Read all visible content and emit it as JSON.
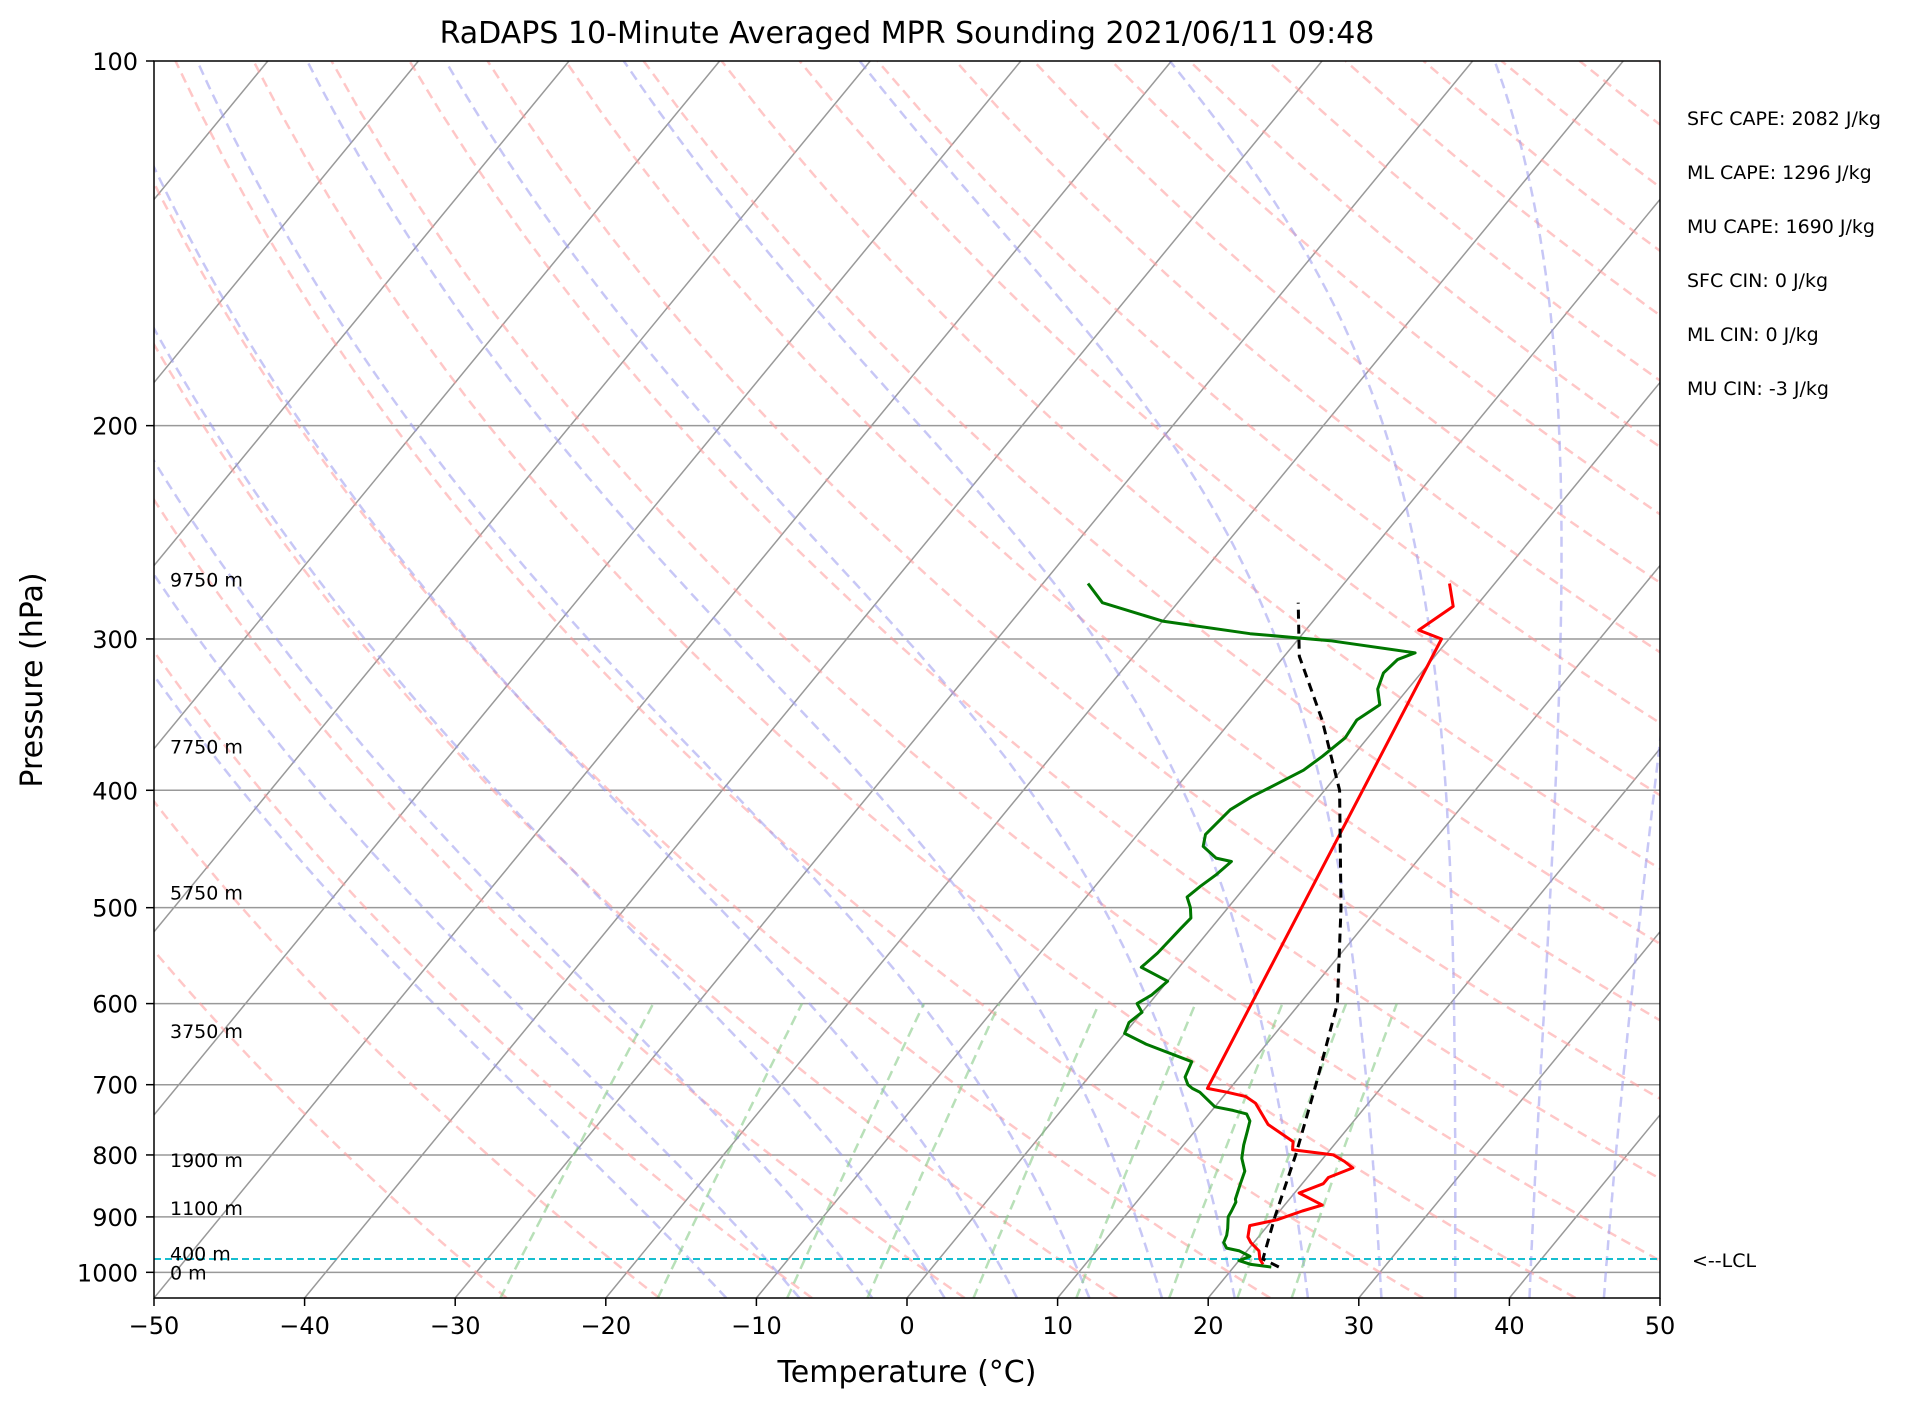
{
  "chart_data": {
    "type": "skew-t",
    "title": "RaDAPS 10-Minute Averaged MPR Sounding 2021/06/11 09:48",
    "xlabel": "Temperature (°C)",
    "ylabel": "Pressure (hPa)",
    "xlim": [
      -50,
      50
    ],
    "ylim": [
      1050,
      100
    ],
    "y_scale": "log",
    "grid": true,
    "x_ticks": [
      "−50",
      "−40",
      "−30",
      "−20",
      "−10",
      "0",
      "10",
      "20",
      "30",
      "40",
      "50"
    ],
    "y_ticks": [
      "100",
      "200",
      "300",
      "400",
      "500",
      "600",
      "700",
      "800",
      "900",
      "1000"
    ],
    "height_labels": [
      {
        "text": "0 m",
        "p": 1000
      },
      {
        "text": "400 m",
        "p": 965
      },
      {
        "text": "1100 m",
        "p": 885
      },
      {
        "text": "1900 m",
        "p": 808
      },
      {
        "text": "3750 m",
        "p": 632
      },
      {
        "text": "5750 m",
        "p": 486
      },
      {
        "text": "7750 m",
        "p": 368
      },
      {
        "text": "9750 m",
        "p": 268
      }
    ],
    "lcl": {
      "p": 975,
      "label": "<--LCL"
    },
    "series": [
      {
        "color": "#ff0000",
        "points": [
          [
            21.8,
            985
          ],
          [
            21.3,
            975
          ],
          [
            20.8,
            960
          ],
          [
            19.8,
            945
          ],
          [
            19.3,
            935
          ],
          [
            18.8,
            915
          ],
          [
            20.3,
            905
          ],
          [
            21.5,
            890
          ],
          [
            22.5,
            880
          ],
          [
            21.2,
            868
          ],
          [
            20.3,
            860
          ],
          [
            21.4,
            845
          ],
          [
            21.4,
            835
          ],
          [
            22.5,
            820
          ],
          [
            21.6,
            810
          ],
          [
            20.5,
            800
          ],
          [
            17.5,
            792
          ],
          [
            17.1,
            780
          ],
          [
            14.5,
            755
          ],
          [
            12.5,
            725
          ],
          [
            11.5,
            716
          ],
          [
            10.0,
            710
          ],
          [
            8.5,
            705
          ],
          [
            -0.5,
            300
          ],
          [
            -2.5,
            295
          ],
          [
            -1.5,
            282
          ],
          [
            -3.0,
            270
          ]
        ]
      },
      {
        "color": "#007700",
        "points": [
          [
            22.5,
            990
          ],
          [
            21.0,
            985
          ],
          [
            20.0,
            978
          ],
          [
            20.5,
            970
          ],
          [
            19.5,
            960
          ],
          [
            18.5,
            955
          ],
          [
            18.0,
            945
          ],
          [
            17.8,
            932
          ],
          [
            17.5,
            920
          ],
          [
            16.9,
            900
          ],
          [
            16.8,
            890
          ],
          [
            16.6,
            875
          ],
          [
            16.4,
            870
          ],
          [
            16.1,
            855
          ],
          [
            15.9,
            845
          ],
          [
            15.5,
            825
          ],
          [
            14.6,
            805
          ],
          [
            14.0,
            785
          ],
          [
            13.5,
            765
          ],
          [
            13.1,
            750
          ],
          [
            12.5,
            740
          ],
          [
            11.4,
            735
          ],
          [
            10.0,
            730
          ],
          [
            8.2,
            710
          ],
          [
            7.5,
            705
          ],
          [
            7.0,
            700
          ],
          [
            6.4,
            690
          ],
          [
            6.0,
            670
          ],
          [
            2.0,
            648
          ],
          [
            0.0,
            635
          ],
          [
            -0.3,
            622
          ],
          [
            0.0,
            610
          ],
          [
            -0.8,
            600
          ],
          [
            -0.3,
            590
          ],
          [
            0.0,
            575
          ],
          [
            -2.5,
            560
          ],
          [
            -2.2,
            545
          ],
          [
            -2.0,
            520
          ],
          [
            -1.9,
            510
          ],
          [
            -2.5,
            500
          ],
          [
            -3.3,
            490
          ],
          [
            -3.0,
            480
          ],
          [
            -2.6,
            470
          ],
          [
            -2.3,
            458
          ],
          [
            -3.5,
            455
          ],
          [
            -5.0,
            445
          ],
          [
            -5.5,
            435
          ],
          [
            -5.2,
            415
          ],
          [
            -4.5,
            405
          ],
          [
            -3.5,
            395
          ],
          [
            -2.5,
            385
          ],
          [
            -2.0,
            375
          ],
          [
            -1.5,
            362
          ],
          [
            -1.7,
            350
          ],
          [
            -1.0,
            340
          ],
          [
            -2.0,
            330
          ],
          [
            -2.5,
            320
          ],
          [
            -2.3,
            312
          ],
          [
            -1.5,
            308
          ],
          [
            -7.8,
            301
          ],
          [
            -13.5,
            297
          ],
          [
            -20.0,
            290
          ],
          [
            -25.0,
            280
          ],
          [
            -27.0,
            270
          ]
        ]
      },
      {
        "color": "#000000",
        "style": "dashed",
        "points": [
          [
            23.0,
            990
          ],
          [
            21.5,
            975
          ],
          [
            20.0,
            900
          ],
          [
            18.0,
            800
          ],
          [
            15.5,
            700
          ],
          [
            12.5,
            600
          ],
          [
            7.5,
            500
          ],
          [
            1.0,
            400
          ],
          [
            -4.0,
            350
          ],
          [
            -9.0,
            310
          ],
          [
            -12.0,
            280
          ]
        ]
      }
    ]
  },
  "stats": [
    {
      "label": "SFC CAPE",
      "text": "SFC CAPE: 2082 J/kg",
      "value": 2082
    },
    {
      "label": "ML CAPE",
      "text": "ML CAPE: 1296 J/kg",
      "value": 1296
    },
    {
      "label": "MU CAPE",
      "text": "MU CAPE: 1690 J/kg",
      "value": 1690
    },
    {
      "label": "SFC CIN",
      "text": "SFC CIN: 0 J/kg",
      "value": 0
    },
    {
      "label": "ML CIN",
      "text": "ML CIN: 0 J/kg",
      "value": 0
    },
    {
      "label": "MU CIN",
      "text": "MU CIN: -3 J/kg",
      "value": -3
    }
  ],
  "colors": {
    "temperature": "#ff0000",
    "dewpoint": "#007700",
    "parcel": "#000000",
    "lcl": "#17becf",
    "dry_adiabat": "#ff9999",
    "moist_adiabat": "#9999ee",
    "mixing_ratio": "#88cc88",
    "isotherm": "#999999"
  }
}
